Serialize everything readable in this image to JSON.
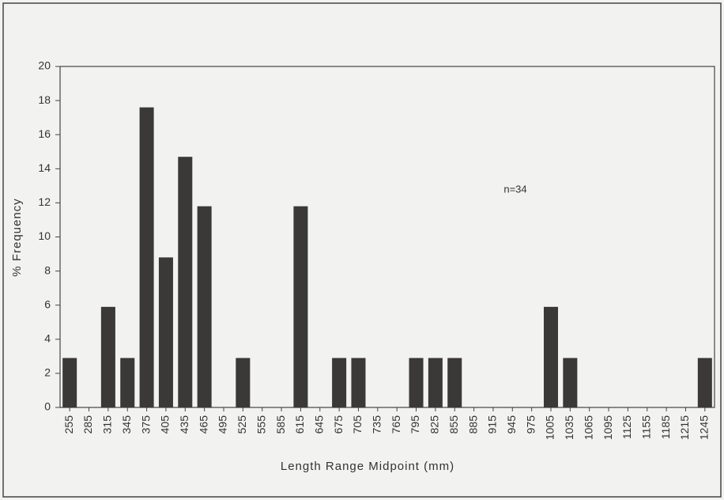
{
  "chart_data": {
    "type": "bar",
    "xlabel": "Length Range Midpoint (mm)",
    "ylabel": "% Frequency",
    "annotation": "n=34",
    "categories": [
      255,
      285,
      315,
      345,
      375,
      405,
      435,
      465,
      495,
      525,
      555,
      585,
      615,
      645,
      675,
      705,
      735,
      765,
      795,
      825,
      855,
      885,
      915,
      945,
      975,
      1005,
      1035,
      1065,
      1095,
      1125,
      1155,
      1185,
      1215,
      1245
    ],
    "values": [
      2.9,
      0,
      5.9,
      2.9,
      17.6,
      8.8,
      14.7,
      11.8,
      0,
      2.9,
      0,
      0,
      11.8,
      0,
      2.9,
      2.9,
      0,
      0,
      2.9,
      2.9,
      2.9,
      0,
      0,
      0,
      0,
      5.9,
      2.9,
      0,
      0,
      0,
      0,
      0,
      0,
      2.9
    ],
    "color": "#3b3838",
    "ylim": [
      0,
      20
    ],
    "yticks": [
      0,
      2,
      4,
      6,
      8,
      10,
      12,
      14,
      16,
      18,
      20
    ],
    "grid": false
  }
}
